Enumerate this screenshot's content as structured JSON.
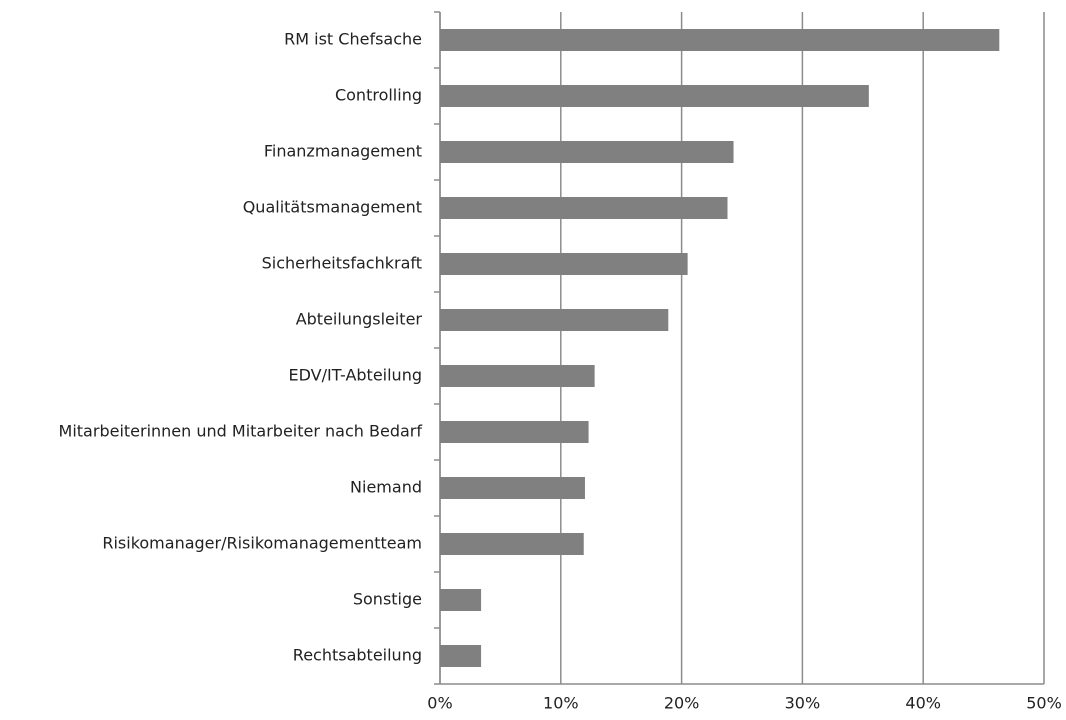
{
  "chart_data": {
    "type": "barh",
    "categories": [
      "RM ist Chefsache",
      "Controlling",
      "Finanzmanagement",
      "Qualitätsmanagement",
      "Sicherheitsfachkraft",
      "Abteilungsleiter",
      "EDV/IT-Abteilung",
      "Mitarbeiterinnen und Mitarbeiter nach Bedarf",
      "Niemand",
      "Risikomanager/Risikomanagementteam",
      "Sonstige",
      "Rechtsabteilung"
    ],
    "values": [
      46.3,
      35.5,
      24.3,
      23.8,
      20.5,
      18.9,
      12.8,
      12.3,
      12.0,
      11.9,
      3.4,
      3.4
    ],
    "color": "#808080",
    "xlim": [
      0,
      50
    ],
    "xticks": [
      {
        "value": 0,
        "label": "0%"
      },
      {
        "value": 10,
        "label": "10%"
      },
      {
        "value": 20,
        "label": "20%"
      },
      {
        "value": 30,
        "label": "30%"
      },
      {
        "value": 40,
        "label": "40%"
      },
      {
        "value": 50,
        "label": "50%"
      }
    ],
    "grid": true
  }
}
